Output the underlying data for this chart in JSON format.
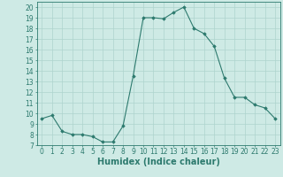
{
  "x": [
    0,
    1,
    2,
    3,
    4,
    5,
    6,
    7,
    8,
    9,
    10,
    11,
    12,
    13,
    14,
    15,
    16,
    17,
    18,
    19,
    20,
    21,
    22,
    23
  ],
  "y": [
    9.5,
    9.8,
    8.3,
    8.0,
    8.0,
    7.8,
    7.3,
    7.3,
    8.8,
    13.5,
    19.0,
    19.0,
    18.9,
    19.5,
    20.0,
    18.0,
    17.5,
    16.3,
    13.3,
    11.5,
    11.5,
    10.8,
    10.5,
    9.5
  ],
  "xlabel": "Humidex (Indice chaleur)",
  "xlim": [
    -0.5,
    23.5
  ],
  "ylim": [
    7,
    20.5
  ],
  "yticks": [
    7,
    8,
    9,
    10,
    11,
    12,
    13,
    14,
    15,
    16,
    17,
    18,
    19,
    20
  ],
  "xticks": [
    0,
    1,
    2,
    3,
    4,
    5,
    6,
    7,
    8,
    9,
    10,
    11,
    12,
    13,
    14,
    15,
    16,
    17,
    18,
    19,
    20,
    21,
    22,
    23
  ],
  "line_color": "#2d7a6e",
  "marker": "D",
  "marker_size": 1.8,
  "bg_color": "#ceeae5",
  "grid_color": "#aed4ce",
  "label_fontsize": 7,
  "tick_fontsize": 5.5
}
